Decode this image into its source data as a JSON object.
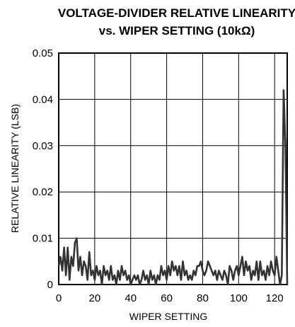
{
  "chart_data": {
    "type": "line",
    "title_line1": "VOLTAGE-DIVIDER RELATIVE LINEARITY",
    "title_line2": "vs. WIPER SETTING (10kΩ)",
    "xlabel": "WIPER SETTING",
    "ylabel": "RELATIVE LINEARITY (LSB)",
    "xlim": [
      0,
      127
    ],
    "ylim": [
      0,
      0.05
    ],
    "xticks": [
      0,
      20,
      40,
      60,
      80,
      100,
      120
    ],
    "xtick_labels": [
      "0",
      "20",
      "40",
      "60",
      "80",
      "100",
      "120"
    ],
    "yticks": [
      0,
      0.01,
      0.02,
      0.03,
      0.04,
      0.05
    ],
    "ytick_labels": [
      "0",
      "0.01",
      "0.02",
      "0.03",
      "0.04",
      "0.05"
    ],
    "grid": true,
    "legend": false,
    "line_color": "#333333",
    "series": [
      {
        "x": [
          0,
          1,
          2,
          3,
          4,
          5,
          6,
          7,
          8,
          9,
          10,
          11,
          12,
          13,
          14,
          15,
          16,
          17,
          18,
          19,
          20,
          21,
          22,
          23,
          24,
          25,
          26,
          27,
          28,
          29,
          30,
          31,
          32,
          33,
          34,
          35,
          36,
          37,
          38,
          39,
          40,
          41,
          42,
          43,
          44,
          45,
          46,
          47,
          48,
          49,
          50,
          51,
          52,
          53,
          54,
          55,
          56,
          57,
          58,
          59,
          60,
          61,
          62,
          63,
          64,
          65,
          66,
          67,
          68,
          69,
          70,
          71,
          72,
          73,
          74,
          75,
          76,
          77,
          78,
          79,
          80,
          81,
          82,
          83,
          84,
          85,
          86,
          87,
          88,
          89,
          90,
          91,
          92,
          93,
          94,
          95,
          96,
          97,
          98,
          99,
          100,
          101,
          102,
          103,
          104,
          105,
          106,
          107,
          108,
          109,
          110,
          111,
          112,
          113,
          114,
          115,
          116,
          117,
          118,
          119,
          120,
          121,
          122,
          123,
          124,
          125,
          126,
          127
        ],
        "values": [
          0.004,
          0.006,
          0.003,
          0.008,
          0.002,
          0.008,
          0.001,
          0.006,
          0.004,
          0.009,
          0.01,
          0.003,
          0.006,
          0.002,
          0.005,
          0.004,
          0.001,
          0.007,
          0.002,
          0.003,
          0.001,
          0.004,
          0.002,
          0.003,
          0.0,
          0.004,
          0.002,
          0.003,
          0.001,
          0.004,
          0.001,
          0.002,
          0.0,
          0.003,
          0.001,
          0.004,
          0.002,
          0.003,
          0.001,
          0.002,
          0.0,
          0.001,
          0.002,
          0.001,
          0.002,
          0.0,
          0.001,
          0.003,
          0.001,
          0.002,
          0.0,
          0.003,
          0.001,
          0.002,
          0.0,
          0.002,
          0.001,
          0.004,
          0.002,
          0.003,
          0.001,
          0.004,
          0.002,
          0.005,
          0.003,
          0.004,
          0.002,
          0.004,
          0.001,
          0.005,
          0.002,
          0.003,
          0.001,
          0.002,
          0.001,
          0.003,
          0.002,
          0.004,
          0.004,
          0.005,
          0.003,
          0.002,
          0.003,
          0.005,
          0.004,
          0.003,
          0.002,
          0.003,
          0.001,
          0.003,
          0.002,
          0.001,
          0.003,
          0.002,
          0.0,
          0.004,
          0.003,
          0.001,
          0.003,
          0.004,
          0.002,
          0.004,
          0.006,
          0.002,
          0.005,
          0.003,
          0.004,
          0.001,
          0.003,
          0.002,
          0.005,
          0.001,
          0.005,
          0.002,
          0.003,
          0.001,
          0.004,
          0.002,
          0.005,
          0.003,
          0.002,
          0.006,
          0.003,
          0.0,
          0.002,
          0.042,
          0.03,
          0.0
        ]
      }
    ]
  }
}
